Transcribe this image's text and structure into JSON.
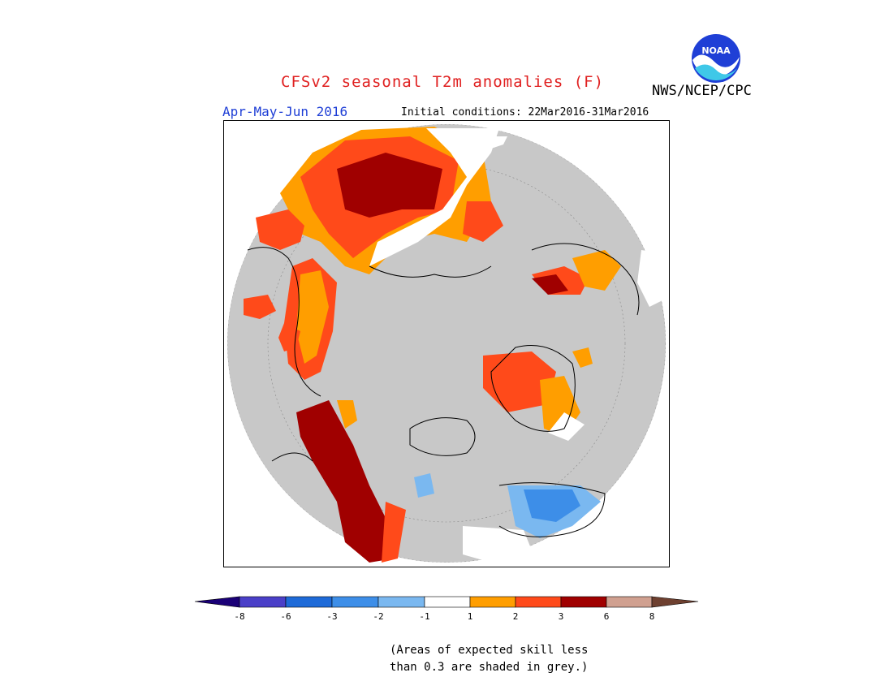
{
  "header": {
    "title": "CFSv2 seasonal T2m anomalies (F)",
    "season": "Apr-May-Jun 2016",
    "initial_conditions": "Initial conditions: 22Mar2016-31Mar2016",
    "organization": "NWS/NCEP/CPC",
    "logo_text": "NOAA"
  },
  "legend": {
    "tick_labels": [
      "-8",
      "-6",
      "-3",
      "-2",
      "-1",
      "1",
      "2",
      "3",
      "6",
      "8"
    ],
    "colors": [
      "#1a0077",
      "#4a3fc8",
      "#1e6ad8",
      "#3d8ee8",
      "#7ab8f0",
      "#ffffff",
      "#ff9e00",
      "#ff4a1a",
      "#a00000",
      "#d0a090",
      "#6e4030"
    ],
    "skill_mask_color": "#c8c8c8"
  },
  "note": {
    "line1": "(Areas of expected skill less",
    "line2": "than 0.3 are shaded in grey.)"
  }
}
